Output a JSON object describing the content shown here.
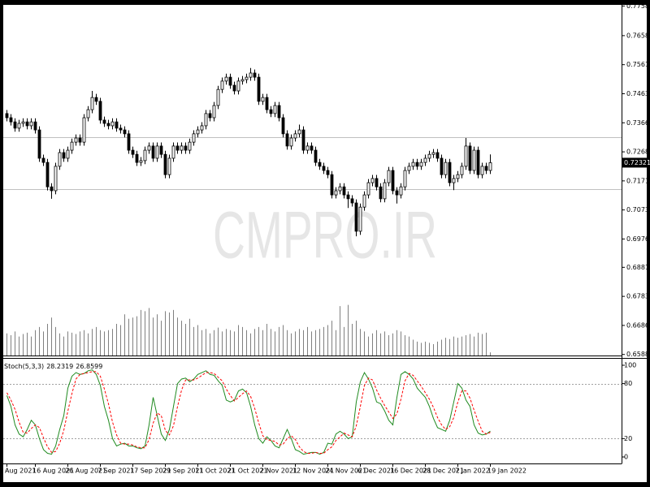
{
  "watermark": "CMPRO.IR",
  "chart_data": [
    {
      "type": "candlestick",
      "categories": [
        "Aug 2021",
        null,
        null,
        null,
        null,
        null,
        null,
        "16 Aug 2021",
        null,
        null,
        null,
        null,
        null,
        null,
        null,
        "26 Aug 2021",
        null,
        null,
        null,
        null,
        null,
        null,
        null,
        "7 Sep 2021",
        null,
        null,
        null,
        null,
        null,
        null,
        null,
        "17 Sep 2021",
        null,
        null,
        null,
        null,
        null,
        null,
        null,
        "29 Sep 2021",
        null,
        null,
        null,
        null,
        null,
        null,
        null,
        "11 Oct 2021",
        null,
        null,
        null,
        null,
        null,
        null,
        null,
        "21 Oct 2021",
        null,
        null,
        null,
        null,
        null,
        null,
        null,
        "2 Nov 2021",
        null,
        null,
        null,
        null,
        null,
        null,
        null,
        "12 Nov 2021",
        null,
        null,
        null,
        null,
        null,
        null,
        null,
        "24 Nov 2021",
        null,
        null,
        null,
        null,
        null,
        null,
        null,
        "6 Dec 2021",
        null,
        null,
        null,
        null,
        null,
        null,
        null,
        "16 Dec 2021",
        null,
        null,
        null,
        null,
        null,
        null,
        null,
        "28 Dec 2021",
        null,
        null,
        null,
        null,
        null,
        null,
        null,
        "7 Jan 2022",
        null,
        null,
        null,
        null,
        null,
        null,
        null,
        "19 Jan 2022"
      ],
      "open": [
        0.7397,
        0.7383,
        0.7369,
        0.7348,
        0.7364,
        0.7369,
        0.7356,
        0.7369,
        0.7342,
        0.7247,
        0.7233,
        0.7151,
        0.7138,
        0.722,
        0.7266,
        0.7247,
        0.7274,
        0.7301,
        0.7315,
        0.7301,
        0.7383,
        0.741,
        0.7451,
        0.7438,
        0.7375,
        0.7364,
        0.7356,
        0.7369,
        0.7348,
        0.7342,
        0.7329,
        0.7274,
        0.726,
        0.7233,
        0.7239,
        0.7274,
        0.7288,
        0.7247,
        0.7288,
        0.726,
        0.7192,
        0.7247,
        0.7288,
        0.7274,
        0.7288,
        0.7274,
        0.7301,
        0.7329,
        0.7342,
        0.7356,
        0.7397,
        0.7383,
        0.7424,
        0.7478,
        0.7506,
        0.7519,
        0.7492,
        0.7473,
        0.7506,
        0.7511,
        0.7519,
        0.7533,
        0.7519,
        0.7438,
        0.7451,
        0.741,
        0.7397,
        0.7424,
        0.7383,
        0.7329,
        0.7288,
        0.7315,
        0.7329,
        0.7342,
        0.7274,
        0.7288,
        0.7274,
        0.7233,
        0.722,
        0.7206,
        0.7192,
        0.7124,
        0.7138,
        0.7151,
        0.7124,
        0.7111,
        0.7097,
        0.7002,
        0.7083,
        0.7124,
        0.7165,
        0.7179,
        0.7151,
        0.7111,
        0.7165,
        0.7206,
        0.7138,
        0.7124,
        0.7151,
        0.7206,
        0.722,
        0.7233,
        0.722,
        0.7233,
        0.7247,
        0.726,
        0.7266,
        0.7247,
        0.7192,
        0.7233,
        0.7165,
        0.7179,
        0.7192,
        0.722,
        0.7288,
        0.7206,
        0.7274,
        0.7192,
        0.722,
        0.7206
      ],
      "high": [
        0.7409,
        0.7395,
        0.7381,
        0.7376,
        0.7381,
        0.7381,
        0.7381,
        0.7381,
        0.7354,
        0.7259,
        0.7245,
        0.7163,
        0.7232,
        0.7278,
        0.7278,
        0.7286,
        0.7313,
        0.7327,
        0.7327,
        0.7395,
        0.7422,
        0.7473,
        0.7463,
        0.745,
        0.7387,
        0.7376,
        0.7381,
        0.7381,
        0.736,
        0.7354,
        0.7341,
        0.7286,
        0.7272,
        0.7251,
        0.7286,
        0.73,
        0.73,
        0.73,
        0.73,
        0.7272,
        0.7259,
        0.73,
        0.73,
        0.73,
        0.73,
        0.7313,
        0.7341,
        0.7354,
        0.7368,
        0.7409,
        0.7409,
        0.7436,
        0.749,
        0.7518,
        0.7531,
        0.7531,
        0.7504,
        0.7518,
        0.7523,
        0.7531,
        0.755,
        0.7545,
        0.7531,
        0.7463,
        0.7463,
        0.7422,
        0.7436,
        0.7436,
        0.7395,
        0.7341,
        0.7327,
        0.7341,
        0.736,
        0.7354,
        0.73,
        0.73,
        0.7286,
        0.7245,
        0.7232,
        0.7218,
        0.7204,
        0.715,
        0.7163,
        0.7163,
        0.7136,
        0.7123,
        0.7109,
        0.7095,
        0.7136,
        0.7177,
        0.7191,
        0.7191,
        0.7163,
        0.7177,
        0.7218,
        0.7218,
        0.715,
        0.7163,
        0.7218,
        0.7232,
        0.7245,
        0.7245,
        0.7245,
        0.7259,
        0.7272,
        0.7278,
        0.7278,
        0.7259,
        0.7245,
        0.7245,
        0.7191,
        0.7204,
        0.7232,
        0.7315,
        0.73,
        0.7286,
        0.7286,
        0.7232,
        0.7232,
        0.726
      ],
      "low": [
        0.7371,
        0.7357,
        0.7336,
        0.7336,
        0.7352,
        0.7344,
        0.7344,
        0.733,
        0.7235,
        0.7221,
        0.7139,
        0.7111,
        0.7126,
        0.7208,
        0.7235,
        0.7235,
        0.7262,
        0.7289,
        0.7289,
        0.7289,
        0.7371,
        0.7398,
        0.7426,
        0.7363,
        0.7352,
        0.7344,
        0.7344,
        0.7336,
        0.733,
        0.7317,
        0.7262,
        0.7248,
        0.7221,
        0.7221,
        0.7227,
        0.7262,
        0.7235,
        0.7235,
        0.7248,
        0.718,
        0.718,
        0.7235,
        0.7262,
        0.7262,
        0.7262,
        0.7262,
        0.7289,
        0.7317,
        0.733,
        0.7344,
        0.7371,
        0.7371,
        0.7412,
        0.7466,
        0.7494,
        0.748,
        0.7461,
        0.7461,
        0.7494,
        0.7499,
        0.7507,
        0.7507,
        0.7426,
        0.7426,
        0.7398,
        0.7385,
        0.7385,
        0.7371,
        0.7317,
        0.7276,
        0.7276,
        0.7303,
        0.7317,
        0.7262,
        0.7262,
        0.7262,
        0.7221,
        0.7208,
        0.7194,
        0.718,
        0.7112,
        0.7112,
        0.7126,
        0.7112,
        0.708,
        0.7085,
        0.6985,
        0.699,
        0.7071,
        0.7112,
        0.7153,
        0.7139,
        0.7099,
        0.7099,
        0.7153,
        0.7126,
        0.7095,
        0.7112,
        0.7139,
        0.7194,
        0.7208,
        0.7208,
        0.7208,
        0.7221,
        0.7235,
        0.7248,
        0.7235,
        0.718,
        0.718,
        0.7153,
        0.714,
        0.7167,
        0.718,
        0.7208,
        0.7194,
        0.7194,
        0.718,
        0.718,
        0.7194,
        0.7194
      ],
      "close": [
        0.7383,
        0.7369,
        0.7348,
        0.7364,
        0.7369,
        0.7356,
        0.7369,
        0.7342,
        0.7247,
        0.7233,
        0.7151,
        0.7138,
        0.722,
        0.7266,
        0.7247,
        0.7274,
        0.7301,
        0.7315,
        0.7301,
        0.7383,
        0.741,
        0.7451,
        0.7438,
        0.7375,
        0.7364,
        0.7356,
        0.7369,
        0.7348,
        0.7342,
        0.7329,
        0.7274,
        0.726,
        0.7233,
        0.7239,
        0.7274,
        0.7288,
        0.7247,
        0.7288,
        0.726,
        0.7192,
        0.7247,
        0.7288,
        0.7274,
        0.7288,
        0.7274,
        0.7301,
        0.7329,
        0.7342,
        0.7356,
        0.7397,
        0.7383,
        0.7424,
        0.7478,
        0.7506,
        0.7519,
        0.7492,
        0.7473,
        0.7506,
        0.7511,
        0.7519,
        0.7533,
        0.7519,
        0.7438,
        0.7451,
        0.741,
        0.7397,
        0.7424,
        0.7383,
        0.7329,
        0.7288,
        0.7315,
        0.7329,
        0.7342,
        0.7274,
        0.7288,
        0.7274,
        0.7233,
        0.722,
        0.7206,
        0.7192,
        0.7124,
        0.7138,
        0.7151,
        0.7124,
        0.7111,
        0.7097,
        0.7002,
        0.7083,
        0.7124,
        0.7165,
        0.7179,
        0.7151,
        0.7111,
        0.7165,
        0.7206,
        0.7138,
        0.7124,
        0.7151,
        0.7206,
        0.722,
        0.7233,
        0.722,
        0.7233,
        0.7247,
        0.726,
        0.7266,
        0.7247,
        0.7192,
        0.7233,
        0.7165,
        0.7179,
        0.7192,
        0.722,
        0.7288,
        0.7206,
        0.7274,
        0.7192,
        0.722,
        0.7206,
        0.72321
      ],
      "up_color": "#ffffff",
      "down_color": "#000000",
      "ylim": [
        0.6585,
        0.7759
      ],
      "yticks": [
        {
          "value": 0.7758,
          "label": "0.77580"
        },
        0.76585,
        {
          "value": 0.7561,
          "label": "0.75610"
        },
        0.74635,
        {
          "value": 0.7366,
          "label": "0.73660"
        },
        0.72685,
        {
          "value": 0.7171,
          "label": "0.71710"
        },
        0.70735,
        {
          "value": 0.6976,
          "label": "0.69760"
        },
        {
          "value": 0.6881,
          "label": "0.68810"
        },
        0.67835,
        {
          "value": 0.6686,
          "label": "0.66860"
        },
        0.65885
      ],
      "hlines": [
        0.7318,
        0.7143
      ],
      "volume": [
        35,
        32,
        38,
        30,
        34,
        36,
        30,
        40,
        45,
        38,
        50,
        60,
        45,
        35,
        30,
        38,
        36,
        34,
        38,
        40,
        35,
        42,
        45,
        40,
        38,
        40,
        42,
        50,
        48,
        65,
        58,
        60,
        62,
        72,
        70,
        75,
        60,
        65,
        55,
        70,
        68,
        72,
        60,
        55,
        50,
        58,
        45,
        48,
        40,
        42,
        35,
        40,
        44,
        38,
        42,
        40,
        38,
        48,
        45,
        40,
        35,
        42,
        45,
        40,
        50,
        42,
        38,
        45,
        48,
        40,
        35,
        38,
        42,
        40,
        45,
        38,
        40,
        42,
        45,
        48,
        55,
        40,
        78,
        45,
        80,
        50,
        55,
        42,
        38,
        30,
        35,
        40,
        35,
        38,
        32,
        35,
        40,
        38,
        32,
        30,
        25,
        22,
        20,
        22,
        20,
        18,
        22,
        25,
        28,
        26,
        30,
        28,
        30,
        32,
        34,
        30,
        36,
        34,
        36,
        5
      ],
      "volume_lim": [
        0,
        100
      ],
      "volume_color": "#808080"
    },
    {
      "type": "line",
      "title": "Stoch(5,3,3)",
      "ylim": [
        0,
        100
      ],
      "yticks": [
        0,
        20,
        80,
        100
      ],
      "levels": [
        20,
        80
      ],
      "series": [
        {
          "color": "#1f8a1f",
          "values": [
            67,
            55,
            35,
            25,
            22,
            30,
            40,
            35,
            20,
            8,
            4,
            3,
            12,
            30,
            45,
            75,
            88,
            92,
            90,
            91,
            94,
            95,
            90,
            78,
            55,
            40,
            20,
            12,
            14,
            15,
            12,
            12,
            10,
            9,
            12,
            35,
            65,
            45,
            25,
            18,
            30,
            55,
            80,
            85,
            86,
            82,
            85,
            90,
            92,
            94,
            90,
            89,
            83,
            78,
            62,
            60,
            62,
            72,
            74,
            70,
            55,
            35,
            20,
            15,
            22,
            18,
            12,
            10,
            20,
            30,
            20,
            8,
            6,
            3,
            4,
            5,
            5,
            3,
            5,
            15,
            14,
            25,
            28,
            25,
            20,
            22,
            60,
            82,
            92,
            85,
            75,
            60,
            58,
            50,
            40,
            35,
            65,
            90,
            93,
            90,
            85,
            75,
            70,
            65,
            55,
            42,
            32,
            30,
            28,
            40,
            60,
            80,
            75,
            62,
            55,
            35,
            26,
            24,
            25,
            28.2319
          ]
        },
        {
          "color": "#ff0000",
          "dash": true,
          "values": [
            70,
            62,
            52,
            38,
            27,
            26,
            31,
            35,
            32,
            21,
            11,
            5,
            6,
            15,
            29,
            50,
            69,
            85,
            90,
            91,
            92,
            93,
            93,
            88,
            74,
            58,
            38,
            24,
            15,
            14,
            14,
            13,
            11,
            10,
            10,
            19,
            37,
            48,
            45,
            29,
            24,
            34,
            55,
            73,
            84,
            84,
            84,
            86,
            89,
            92,
            92,
            91,
            87,
            83,
            74,
            67,
            61,
            65,
            69,
            72,
            66,
            53,
            37,
            23,
            19,
            18,
            17,
            13,
            14,
            20,
            23,
            19,
            11,
            6,
            4,
            4,
            5,
            4,
            4,
            8,
            11,
            18,
            22,
            26,
            24,
            22,
            34,
            55,
            78,
            86,
            84,
            73,
            64,
            56,
            49,
            42,
            47,
            63,
            83,
            91,
            89,
            83,
            77,
            70,
            63,
            54,
            43,
            35,
            30,
            33,
            43,
            60,
            72,
            72,
            64,
            51,
            39,
            28,
            25,
            26.8599
          ]
        }
      ]
    }
  ]
}
